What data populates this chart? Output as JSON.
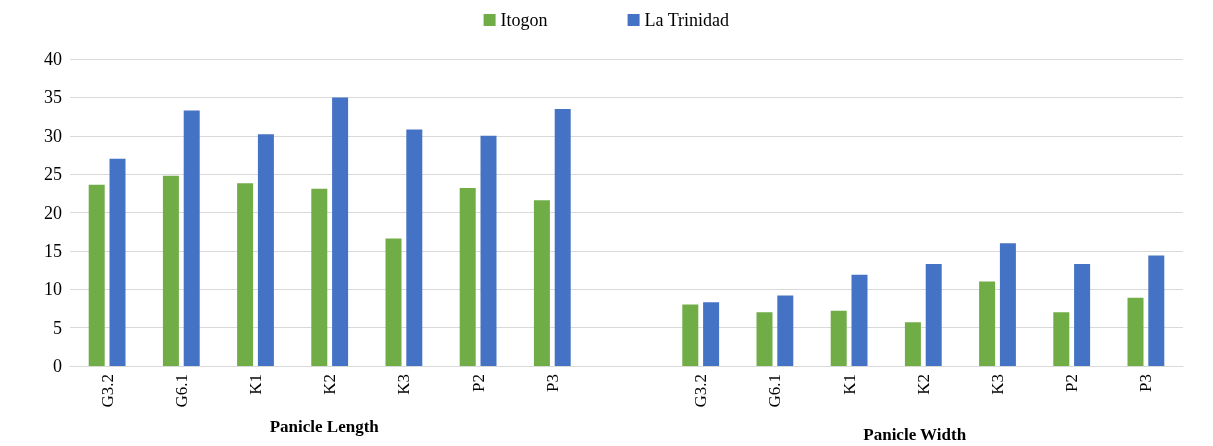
{
  "chart_data": {
    "type": "bar",
    "categories": [
      "G3.2",
      "G6.1",
      "K1",
      "K2",
      "K3",
      "P2",
      "P3",
      null,
      "G3.2",
      "G6.1",
      "K1",
      "K2",
      "K3",
      "P2",
      "P3"
    ],
    "series": [
      {
        "name": "Itogon",
        "color": "#70ad47",
        "values": [
          23.6,
          24.8,
          23.8,
          23.1,
          16.6,
          23.2,
          21.6,
          null,
          8.0,
          7.0,
          7.2,
          5.7,
          11.0,
          7.0,
          8.9
        ]
      },
      {
        "name": "La Trinidad",
        "color": "#4472c4",
        "values": [
          27.0,
          33.3,
          30.2,
          35.0,
          30.8,
          30.0,
          33.5,
          null,
          8.3,
          9.2,
          11.9,
          13.3,
          16.0,
          13.3,
          14.4
        ]
      }
    ],
    "ylim": [
      0,
      40
    ],
    "yticks": [
      0,
      5,
      10,
      15,
      20,
      25,
      30,
      35,
      40
    ],
    "grid": "y",
    "legend": "top",
    "annotations": [
      "Panicle Length",
      "Panicle Width"
    ]
  }
}
